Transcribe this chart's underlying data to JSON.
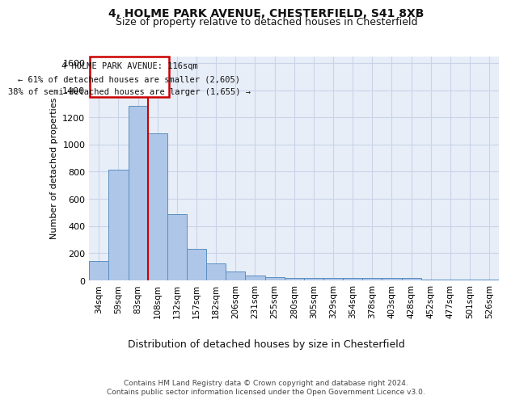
{
  "title1": "4, HOLME PARK AVENUE, CHESTERFIELD, S41 8XB",
  "title2": "Size of property relative to detached houses in Chesterfield",
  "xlabel": "Distribution of detached houses by size in Chesterfield",
  "ylabel": "Number of detached properties",
  "footer1": "Contains HM Land Registry data © Crown copyright and database right 2024.",
  "footer2": "Contains public sector information licensed under the Open Government Licence v3.0.",
  "annotation_line1": "4 HOLME PARK AVENUE: 116sqm",
  "annotation_line2": "← 61% of detached houses are smaller (2,605)",
  "annotation_line3": "38% of semi-detached houses are larger (1,655) →",
  "bar_labels": [
    "34sqm",
    "59sqm",
    "83sqm",
    "108sqm",
    "132sqm",
    "157sqm",
    "182sqm",
    "206sqm",
    "231sqm",
    "255sqm",
    "280sqm",
    "305sqm",
    "329sqm",
    "354sqm",
    "378sqm",
    "403sqm",
    "428sqm",
    "452sqm",
    "477sqm",
    "501sqm",
    "526sqm"
  ],
  "bar_values": [
    140,
    815,
    1285,
    1085,
    490,
    230,
    125,
    65,
    38,
    25,
    15,
    15,
    15,
    15,
    15,
    15,
    15,
    5,
    5,
    5,
    5
  ],
  "bar_color": "#aec6e8",
  "bar_edge_color": "#5a8fc0",
  "vline_color": "#cc0000",
  "vline_x": 2.5,
  "ylim": [
    0,
    1650
  ],
  "yticks": [
    0,
    200,
    400,
    600,
    800,
    1000,
    1200,
    1400,
    1600
  ],
  "grid_color": "#c8d4e8",
  "bg_color": "#e8eef8",
  "annotation_box_color": "#cc0000",
  "title_fontsize": 10,
  "subtitle_fontsize": 9
}
